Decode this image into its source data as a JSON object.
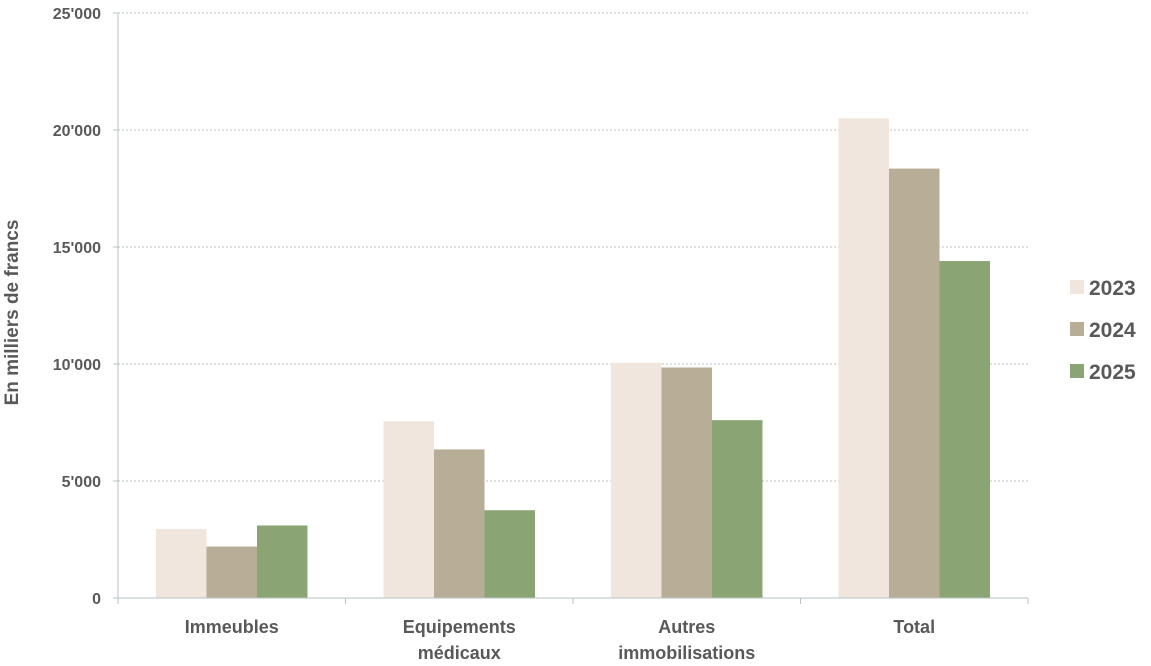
{
  "chart_data": {
    "type": "bar",
    "title": "",
    "xlabel": "",
    "ylabel": "En milliers de francs",
    "categories": [
      [
        "Immeubles"
      ],
      [
        "Equipements",
        "médicaux"
      ],
      [
        "Autres",
        "immobilisations"
      ],
      [
        "Total"
      ]
    ],
    "series": [
      {
        "name": "2023",
        "color": "#f1e6dd",
        "values": [
          2950,
          7550,
          10050,
          20500
        ]
      },
      {
        "name": "2024",
        "color": "#b8ad96",
        "values": [
          2200,
          6350,
          9850,
          18350
        ]
      },
      {
        "name": "2025",
        "color": "#8aa473",
        "values": [
          3100,
          3750,
          7600,
          14400
        ]
      }
    ],
    "ylim": [
      0,
      25000
    ],
    "yticks": [
      0,
      5000,
      10000,
      15000,
      20000,
      25000
    ],
    "ytick_labels": [
      "0",
      "5'000",
      "10'000",
      "15'000",
      "20'000",
      "25'000"
    ],
    "grid": true,
    "grid_style": "dotted",
    "legend_position": "right"
  }
}
